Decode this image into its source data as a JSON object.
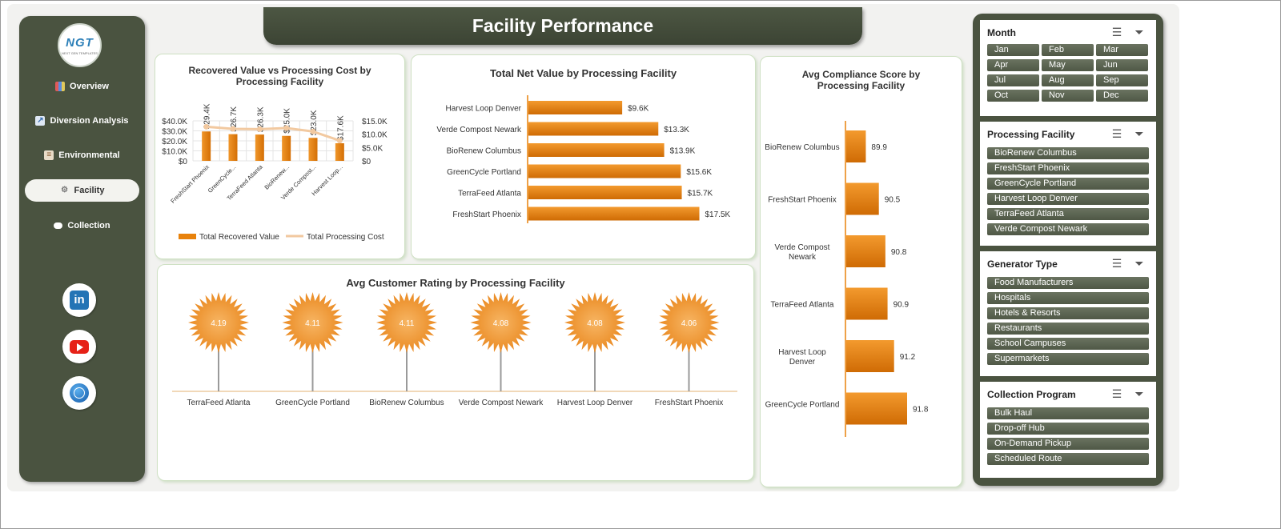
{
  "page_title": "Facility Performance",
  "logo": {
    "text": "NGT",
    "tagline": "NEXT GEN TEMPLATES"
  },
  "sidebar": {
    "items": [
      {
        "label": "Overview",
        "icon": "chart-icon"
      },
      {
        "label": "Diversion Analysis",
        "icon": "trend-icon"
      },
      {
        "label": "Environmental",
        "icon": "clipboard-icon"
      },
      {
        "label": "Facility",
        "icon": "gear-icon"
      },
      {
        "label": "Collection",
        "icon": "cloud-icon"
      }
    ],
    "active": "Facility",
    "social": [
      "linkedin-icon",
      "youtube-icon",
      "web-icon"
    ]
  },
  "chart_data": [
    {
      "type": "bar",
      "title": "Recovered Value vs Processing Cost by Processing Facility",
      "categories": [
        "FreshStart Phoenix",
        "GreenCycle...",
        "TerraFeed Atlanta",
        "BioRenew...",
        "Verde Compost...",
        "Harvest Loop..."
      ],
      "series": [
        {
          "name": "Total Recovered Value",
          "values": [
            29.4,
            26.7,
            26.3,
            25.0,
            23.0,
            17.6
          ],
          "labels": [
            "$29.4K",
            "$26.7K",
            "$26.3K",
            "$25.0K",
            "$23.0K",
            "$17.6K"
          ],
          "color": "#e8820c"
        },
        {
          "name": "Total Processing Cost",
          "values": [
            12.8,
            12.0,
            11.9,
            12.3,
            11.0,
            7.6
          ],
          "color": "#f2c9a0"
        }
      ],
      "left_ticks": [
        "$0",
        "$10.0K",
        "$20.0K",
        "$30.0K",
        "$40.0K"
      ],
      "right_ticks": [
        "$0",
        "$5.0K",
        "$10.0K",
        "$15.0K"
      ],
      "ylim": [
        0,
        40
      ],
      "y2lim": [
        0,
        15
      ],
      "legend": "bottom"
    },
    {
      "type": "bar",
      "orientation": "horizontal",
      "title": "Total Net Value by Processing Facility",
      "categories": [
        "Harvest Loop Denver",
        "Verde Compost Newark",
        "BioRenew Columbus",
        "GreenCycle Portland",
        "TerraFeed Atlanta",
        "FreshStart Phoenix"
      ],
      "values": [
        9.6,
        13.3,
        13.9,
        15.6,
        15.7,
        17.5
      ],
      "labels": [
        "$9.6K",
        "$13.3K",
        "$13.9K",
        "$15.6K",
        "$15.7K",
        "$17.5K"
      ],
      "xlim": [
        0,
        20
      ],
      "color": "#e8820c"
    },
    {
      "type": "bar",
      "orientation": "horizontal",
      "title": "Avg Compliance Score by Processing Facility",
      "categories": [
        "BioRenew Columbus",
        "FreshStart Phoenix",
        "Verde Compost Newark",
        "TerraFeed Atlanta",
        "Harvest Loop Denver",
        "GreenCycle Portland"
      ],
      "values": [
        89.9,
        90.5,
        90.8,
        90.9,
        91.2,
        91.8
      ],
      "labels": [
        "89.9",
        "90.5",
        "90.8",
        "90.9",
        "91.2",
        "91.8"
      ],
      "xlim": [
        89.0,
        92.5
      ],
      "color": "#e8820c"
    },
    {
      "type": "lollipop",
      "title": "Avg Customer Rating by Processing Facility",
      "categories": [
        "TerraFeed Atlanta",
        "GreenCycle Portland",
        "BioRenew Columbus",
        "Verde Compost Newark",
        "Harvest Loop Denver",
        "FreshStart Phoenix"
      ],
      "values": [
        4.19,
        4.11,
        4.11,
        4.08,
        4.08,
        4.06
      ],
      "labels": [
        "4.19",
        "4.11",
        "4.11",
        "4.08",
        "4.08",
        "4.06"
      ],
      "color": "#f0a040"
    }
  ],
  "slicers": [
    {
      "title": "Month",
      "layout": "grid",
      "items": [
        "Jan",
        "Feb",
        "Mar",
        "Apr",
        "May",
        "Jun",
        "Jul",
        "Aug",
        "Sep",
        "Oct",
        "Nov",
        "Dec"
      ]
    },
    {
      "title": "Processing Facility",
      "layout": "list",
      "items": [
        "BioRenew Columbus",
        "FreshStart Phoenix",
        "GreenCycle Portland",
        "Harvest Loop Denver",
        "TerraFeed Atlanta",
        "Verde Compost Newark"
      ]
    },
    {
      "title": "Generator Type",
      "layout": "list",
      "items": [
        "Food Manufacturers",
        "Hospitals",
        "Hotels & Resorts",
        "Restaurants",
        "School Campuses",
        "Supermarkets"
      ]
    },
    {
      "title": "Collection Program",
      "layout": "list",
      "items": [
        "Bulk Haul",
        "Drop-off Hub",
        "On-Demand Pickup",
        "Scheduled Route"
      ]
    }
  ]
}
